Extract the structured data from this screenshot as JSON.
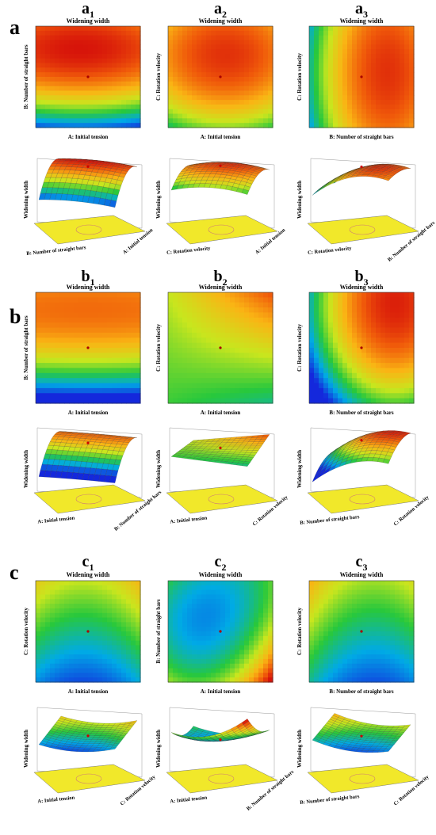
{
  "row_labels": [
    "a",
    "b",
    "c"
  ],
  "title_text": "Widening width",
  "panels": [
    {
      "id": "a1",
      "main": "a",
      "sub": "1",
      "xlabel": "A: Initial tension",
      "ylabel": "B: Number of straight bars",
      "surface_x": "B: Number of straight bars",
      "surface_y": "A: Initial tension"
    },
    {
      "id": "a2",
      "main": "a",
      "sub": "2",
      "xlabel": "A: Initial tension",
      "ylabel": "C: Rotation velocity",
      "surface_x": "C: Rotation velocity",
      "surface_y": "A: Initial tension"
    },
    {
      "id": "a3",
      "main": "a",
      "sub": "3",
      "xlabel": "B: Number of straight bars",
      "ylabel": "C: Rotation velocity",
      "surface_x": "C: Rotation velocity",
      "surface_y": "B: Number of straight bars"
    },
    {
      "id": "b1",
      "main": "b",
      "sub": "1",
      "xlabel": "A: Initial tension",
      "ylabel": "B: Number of straight bars",
      "surface_x": "A: Initial tension",
      "surface_y": "B: Number of straight bars"
    },
    {
      "id": "b2",
      "main": "b",
      "sub": "2",
      "xlabel": "A: Initial tension",
      "ylabel": "C: Rotation velocity",
      "surface_x": "A: Initial tension",
      "surface_y": "C: Rotation velocity"
    },
    {
      "id": "b3",
      "main": "b",
      "sub": "3",
      "xlabel": "B: Number of straight bars",
      "ylabel": "C: Rotation velocity",
      "surface_x": "B: Number of straight bars",
      "surface_y": "C: Rotation velocity"
    },
    {
      "id": "c1",
      "main": "c",
      "sub": "1",
      "xlabel": "A: Initial tension",
      "ylabel": "C: Rotation velocity",
      "surface_x": "A: Initial tension",
      "surface_y": "C: Rotation velocity"
    },
    {
      "id": "c2",
      "main": "c",
      "sub": "2",
      "xlabel": "A: Initial tension",
      "ylabel": "B: Number of straight bars",
      "surface_x": "A: Initial tension",
      "surface_y": "B: Number of straight bars"
    },
    {
      "id": "c3",
      "main": "c",
      "sub": "3",
      "xlabel": "B: Number of straight bars",
      "ylabel": "C: Rotation velocity",
      "surface_x": "B: Number of straight bars",
      "surface_y": "C: Rotation velocity"
    }
  ],
  "surface_zlabel": "Widening width",
  "chart_data": [
    {
      "type": "heatmap",
      "panel": "a1",
      "title": "Widening width",
      "xlabel": "A: Initial tension",
      "ylabel": "B: Number of straight bars",
      "xlim": [
        0,
        8
      ],
      "ylim": [
        0,
        8
      ]
    },
    {
      "type": "heatmap",
      "panel": "a2",
      "title": "Widening width",
      "xlabel": "A: Initial tension",
      "ylabel": "C: Rotation velocity",
      "xlim": [
        0,
        8
      ],
      "ylim": [
        0,
        4
      ]
    },
    {
      "type": "heatmap",
      "panel": "a3",
      "title": "Widening width",
      "xlabel": "B: Number of straight bars",
      "ylabel": "C: Rotation velocity",
      "xlim": [
        1,
        8
      ],
      "ylim": [
        1,
        4
      ]
    },
    {
      "type": "heatmap",
      "panel": "b1",
      "title": "Widening width",
      "xlabel": "A: Initial tension",
      "ylabel": "B: Number of straight bars",
      "xlim": [
        0,
        8
      ],
      "ylim": [
        0,
        8
      ]
    },
    {
      "type": "heatmap",
      "panel": "b2",
      "title": "Widening width",
      "xlabel": "A: Initial tension",
      "ylabel": "C: Rotation velocity",
      "xlim": [
        0,
        8
      ],
      "ylim": [
        1,
        4
      ]
    },
    {
      "type": "heatmap",
      "panel": "b3",
      "title": "Widening width",
      "xlabel": "B: Number of straight bars",
      "ylabel": "C: Rotation velocity",
      "xlim": [
        1,
        8
      ],
      "ylim": [
        1,
        4
      ]
    },
    {
      "type": "heatmap",
      "panel": "c1",
      "title": "Widening width",
      "xlabel": "A: Initial tension",
      "ylabel": "C: Rotation velocity",
      "xlim": [
        -1,
        1
      ],
      "ylim": [
        -1,
        1
      ]
    },
    {
      "type": "heatmap",
      "panel": "c2",
      "title": "Widening width",
      "xlabel": "A: Initial tension",
      "ylabel": "B: Number of straight bars",
      "xlim": [
        -1,
        1
      ],
      "ylim": [
        -1,
        1
      ]
    },
    {
      "type": "heatmap",
      "panel": "c3",
      "title": "Widening width",
      "xlabel": "B: Number of straight bars",
      "ylabel": "C: Rotation velocity",
      "xlim": [
        -1,
        1
      ],
      "ylim": [
        -1,
        1
      ]
    }
  ]
}
